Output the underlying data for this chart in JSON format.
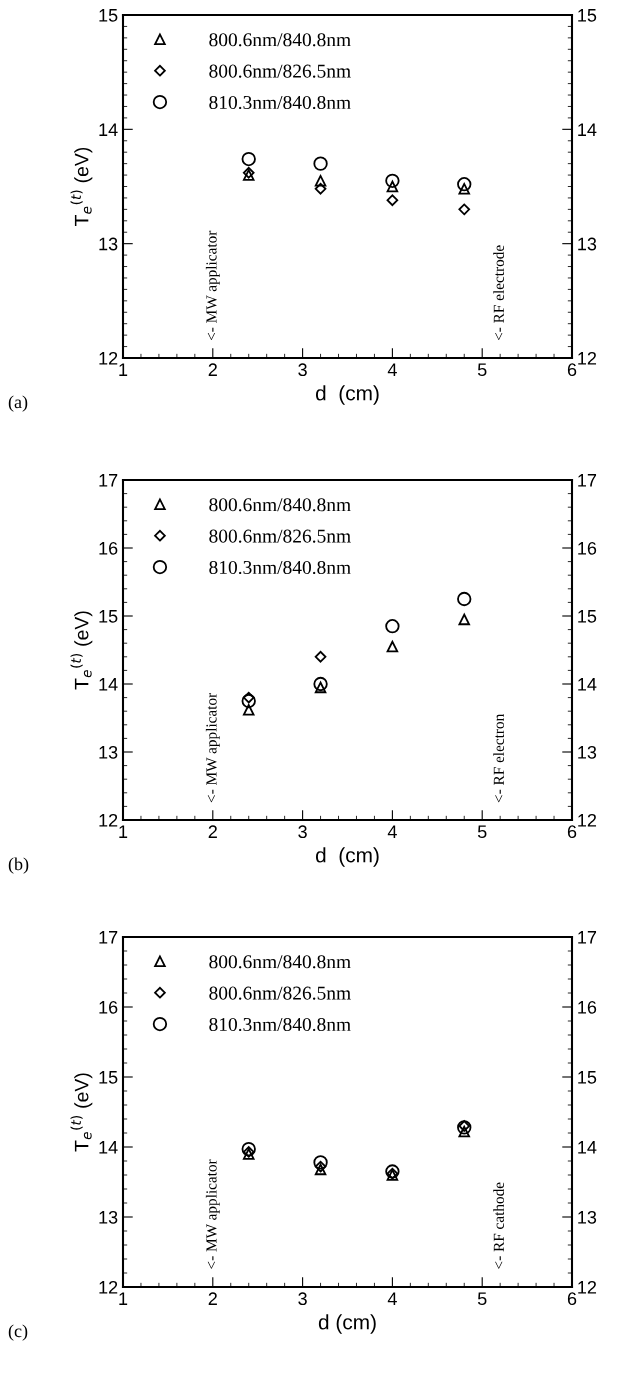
{
  "chart_data": [
    {
      "type": "scatter",
      "xlabel": "d  (cm)",
      "ylabel": "T$_{e}$$^{(t)}$ (eV)",
      "x": [
        2.4,
        3.2,
        4.0,
        4.8
      ],
      "xlim": [
        1,
        6
      ],
      "xticks": [
        1,
        2,
        3,
        4,
        5,
        6
      ],
      "ylim": [
        12,
        15
      ],
      "yticks": [
        12,
        13,
        14,
        15
      ],
      "y2lim": [
        12,
        15
      ],
      "y2ticks": [
        12,
        13,
        14,
        15
      ],
      "legend": "top left",
      "grid": false,
      "series": [
        {
          "name": "800.6nm/840.8nm",
          "color": "#000000",
          "marker": "triangle",
          "values": [
            13.6,
            13.55,
            13.5,
            13.48
          ]
        },
        {
          "name": "800.6nm/826.5nm",
          "color": "#000000",
          "marker": "diamond",
          "values": [
            13.62,
            13.48,
            13.38,
            13.3
          ]
        },
        {
          "name": "810.3nm/840.8nm",
          "color": "#000000",
          "marker": "circle",
          "values": [
            13.74,
            13.7,
            13.55,
            13.52
          ]
        }
      ],
      "annotations": [
        "(a)",
        "<- MW applicator",
        "<- RF electrode"
      ]
    },
    {
      "type": "scatter",
      "xlabel": "d  (cm)",
      "ylabel": "T$_{e}$$^{(t)}$ (eV)",
      "x": [
        2.4,
        3.2,
        4.0,
        4.8
      ],
      "xlim": [
        1,
        6
      ],
      "xticks": [
        1,
        2,
        3,
        4,
        5,
        6
      ],
      "ylim": [
        12,
        17
      ],
      "yticks": [
        12,
        13,
        14,
        15,
        16,
        17
      ],
      "y2lim": [
        12,
        17
      ],
      "y2ticks": [
        12,
        13,
        14,
        15,
        16,
        17
      ],
      "legend": "top left",
      "grid": false,
      "series": [
        {
          "name": "800.6nm/840.8nm",
          "color": "#000000",
          "marker": "triangle",
          "values": [
            13.62,
            13.95,
            14.55,
            14.95
          ]
        },
        {
          "name": "800.6nm/826.5nm",
          "color": "#000000",
          "marker": "diamond",
          "values": [
            13.8,
            14.4,
            null,
            null
          ]
        },
        {
          "name": "810.3nm/840.8nm",
          "color": "#000000",
          "marker": "circle",
          "values": [
            13.75,
            14.0,
            14.85,
            15.25
          ]
        }
      ],
      "annotations": [
        "(b)",
        "<- MW applicator",
        "<- RF electron"
      ]
    },
    {
      "type": "scatter",
      "xlabel": "d (cm)",
      "ylabel": "T$_{e}$$^{(t)}$ (eV)",
      "x": [
        2.4,
        3.2,
        4.0,
        4.8
      ],
      "xlim": [
        1,
        6
      ],
      "xticks": [
        1,
        2,
        3,
        4,
        5,
        6
      ],
      "ylim": [
        12,
        17
      ],
      "yticks": [
        12,
        13,
        14,
        15,
        16,
        17
      ],
      "y2lim": [
        12,
        17
      ],
      "y2ticks": [
        12,
        13,
        14,
        15,
        16,
        17
      ],
      "legend": "top left",
      "grid": false,
      "series": [
        {
          "name": "800.6nm/840.8nm",
          "color": "#000000",
          "marker": "triangle",
          "values": [
            13.9,
            13.68,
            13.6,
            14.22
          ]
        },
        {
          "name": "800.6nm/826.5nm",
          "color": "#000000",
          "marker": "diamond",
          "values": [
            13.93,
            13.72,
            13.62,
            14.3
          ]
        },
        {
          "name": "810.3nm/840.8nm",
          "color": "#000000",
          "marker": "circle",
          "values": [
            13.97,
            13.78,
            13.65,
            14.28
          ]
        }
      ],
      "annotations": [
        "(c)",
        "<- MW applicator",
        "<- RF cathode"
      ]
    }
  ]
}
